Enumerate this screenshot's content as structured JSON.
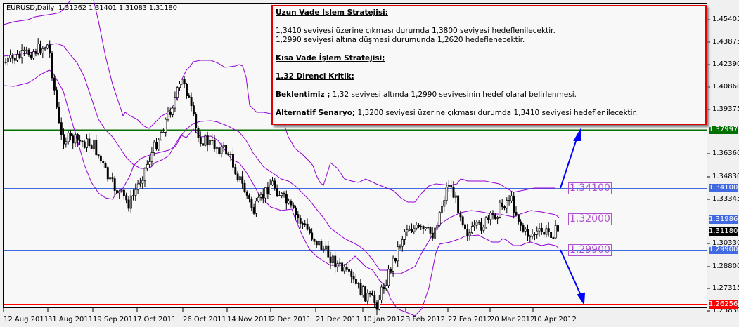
{
  "header": {
    "symbol_timeframe": "EURUSD,Daily",
    "ohlc": "1.31262 1.31401 1.31083 1.31180"
  },
  "strategy_box": {
    "long_term_title": "Uzun Vade İşlem Stratejisi;",
    "long_term_line1": "1,3410 seviyesi üzerine çıkması durumda 1,3800 seviyesi hedeflenilecektir.",
    "long_term_line2": "1,2990 seviyesi altına düşmesi durumunda 1,2620 hedeflenecektir.",
    "short_term_title": "Kısa Vade İşlem Stratejisi;",
    "resistance_title": "1,32 Direnci Kritik;",
    "expectation_label": "Beklentimiz ;",
    "expectation_text": " 1,32 seviyesi altında 1,2990 seviyesinin hedef olaral belirlenmesi.",
    "alternative_label": "Alternatif Senaryo;",
    "alternative_text": " 1,3200 seviyesi üzerine çıkması durumda 1,3410 seviyesi hedeflenilecektir."
  },
  "level_tags": [
    "1.34100",
    "1.32000",
    "1.29900"
  ],
  "y_axis": {
    "ticks": [
      "1.45405",
      "1.43875",
      "1.42390",
      "1.40860",
      "1.39375",
      "1.36360",
      "1.34830",
      "1.33345",
      "1.30330",
      "1.28800",
      "1.27315",
      "1.25830"
    ],
    "tags": [
      {
        "value": "1.37997",
        "color": "#007000"
      },
      {
        "value": "1.34100",
        "color": "#4169e1"
      },
      {
        "value": "1.31986",
        "color": "#4169e1"
      },
      {
        "value": "1.31180",
        "color": "#000000"
      },
      {
        "value": "1.29900",
        "color": "#4169e1"
      },
      {
        "value": "1.26256",
        "color": "#ff0000"
      }
    ]
  },
  "x_axis": {
    "ticks": [
      "12 Aug 2011",
      "31 Aug 2011",
      "19 Sep 2011",
      "7 Oct 2011",
      "26 Oct 2011",
      "14 Nov 2011",
      "2 Dec 2011",
      "21 Dec 2011",
      "10 Jan 2012",
      "3 Feb 2012",
      "27 Feb 2012",
      "20 Mar 2012",
      "10 Apr 2012"
    ]
  },
  "colors": {
    "target_up_line": "#007000",
    "target_down_line": "#ff0000",
    "level_lines": "#4169e1",
    "bollinger": "#9400d3",
    "arrows": "#0000ff",
    "current_price_line": "#c0c0c0"
  },
  "chart_data": {
    "type": "candlestick",
    "title": "EURUSD,Daily",
    "ohlc_last": {
      "open": 1.31262,
      "high": 1.31401,
      "low": 1.31083,
      "close": 1.3118
    },
    "ylim": [
      1.2583,
      1.46
    ],
    "x_range": [
      "12 Aug 2011",
      "16 Apr 2012"
    ],
    "horizontal_lines": [
      {
        "label": "Target up",
        "value": 1.37997,
        "color": "#007000"
      },
      {
        "label": "Resistance",
        "value": 1.341,
        "color": "#4169e1"
      },
      {
        "label": "Critical resistance",
        "value": 1.31986,
        "color": "#4169e1"
      },
      {
        "label": "Current price",
        "value": 1.3118,
        "color": "#c0c0c0"
      },
      {
        "label": "Support",
        "value": 1.299,
        "color": "#4169e1"
      },
      {
        "label": "Target down",
        "value": 1.26256,
        "color": "#ff0000"
      }
    ],
    "annotations": [
      "1.34100",
      "1.32000",
      "1.29900",
      "Up arrow from 1.3410 to 1.3800",
      "Down arrow from 1.2990 to 1.2620"
    ],
    "indicators": [
      "Bollinger Bands (upper, middle, lower)"
    ],
    "approx_close_path": [
      {
        "date": "12 Aug 2011",
        "close": 1.425
      },
      {
        "date": "31 Aug 2011",
        "close": 1.437
      },
      {
        "date": "9 Sep 2011",
        "close": 1.375
      },
      {
        "date": "19 Sep 2011",
        "close": 1.37
      },
      {
        "date": "26 Sep 2011",
        "close": 1.345
      },
      {
        "date": "4 Oct 2011",
        "close": 1.33
      },
      {
        "date": "14 Oct 2011",
        "close": 1.375
      },
      {
        "date": "26 Oct 2011",
        "close": 1.415
      },
      {
        "date": "1 Nov 2011",
        "close": 1.375
      },
      {
        "date": "14 Nov 2011",
        "close": 1.365
      },
      {
        "date": "25 Nov 2011",
        "close": 1.325
      },
      {
        "date": "2 Dec 2011",
        "close": 1.345
      },
      {
        "date": "12 Dec 2011",
        "close": 1.325
      },
      {
        "date": "21 Dec 2011",
        "close": 1.305
      },
      {
        "date": "10 Jan 2012",
        "close": 1.27
      },
      {
        "date": "16 Jan 2012",
        "close": 1.263
      },
      {
        "date": "3 Feb 2012",
        "close": 1.315
      },
      {
        "date": "15 Feb 2012",
        "close": 1.31
      },
      {
        "date": "27 Feb 2012",
        "close": 1.345
      },
      {
        "date": "7 Mar 2012",
        "close": 1.31
      },
      {
        "date": "20 Mar 2012",
        "close": 1.32
      },
      {
        "date": "28 Mar 2012",
        "close": 1.335
      },
      {
        "date": "3 Apr 2012",
        "close": 1.31
      },
      {
        "date": "10 Apr 2012",
        "close": 1.31
      },
      {
        "date": "16 Apr 2012",
        "close": 1.3118
      }
    ]
  }
}
